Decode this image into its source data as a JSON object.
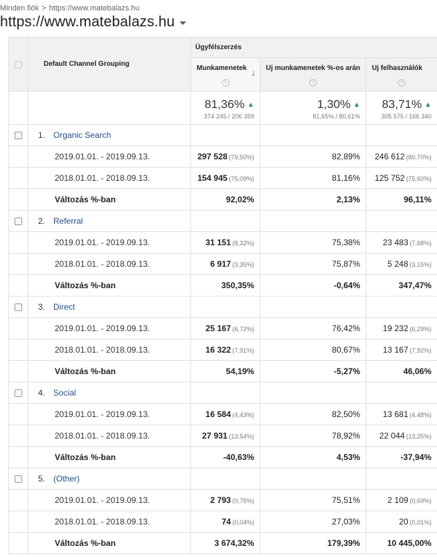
{
  "breadcrumb": {
    "root": "Minden fiók",
    "separator": ">",
    "current": "https://www.matebalazs.hu"
  },
  "view_title": "https://www.matebalazs.hu",
  "table": {
    "dimension_header": "Default Channel Grouping",
    "group_header": "Ügyfélszerzés",
    "columns": [
      "Munkamenetek",
      "Új munkamenetek %-os aránya",
      "Új felhasználók"
    ],
    "help_glyph": "?",
    "sort_glyph": "↓",
    "summary": [
      {
        "value": "81,36%",
        "sub": "374 245 / 206 359"
      },
      {
        "value": "1,30%",
        "sub": "81,65% / 80,61%"
      },
      {
        "value": "83,71%",
        "sub": "305 575 / 166 340"
      }
    ],
    "groups": [
      {
        "index": "1.",
        "name": "Organic Search",
        "rows": [
          {
            "label": "2019.01.01. - 2019.09.13.",
            "sessions": "297 528",
            "sessions_pct": "(79,50%)",
            "new_pct": "82,89%",
            "users": "246 612",
            "users_pct": "(80,70%)"
          },
          {
            "label": "2018.01.01. - 2018.09.13.",
            "sessions": "154 945",
            "sessions_pct": "(75,09%)",
            "new_pct": "81,16%",
            "users": "125 752",
            "users_pct": "(75,60%)"
          }
        ],
        "change": {
          "label": "Változás %-ban",
          "sessions": "92,02%",
          "new_pct": "2,13%",
          "users": "96,11%"
        }
      },
      {
        "index": "2.",
        "name": "Referral",
        "rows": [
          {
            "label": "2019.01.01. - 2019.09.13.",
            "sessions": "31 151",
            "sessions_pct": "(8,32%)",
            "new_pct": "75,38%",
            "users": "23 483",
            "users_pct": "(7,68%)"
          },
          {
            "label": "2018.01.01. - 2018.09.13.",
            "sessions": "6 917",
            "sessions_pct": "(3,35%)",
            "new_pct": "75,87%",
            "users": "5 248",
            "users_pct": "(3,15%)"
          }
        ],
        "change": {
          "label": "Változás %-ban",
          "sessions": "350,35%",
          "new_pct": "-0,64%",
          "users": "347,47%"
        }
      },
      {
        "index": "3.",
        "name": "Direct",
        "rows": [
          {
            "label": "2019.01.01. - 2019.09.13.",
            "sessions": "25 167",
            "sessions_pct": "(6,72%)",
            "new_pct": "76,42%",
            "users": "19 232",
            "users_pct": "(6,29%)"
          },
          {
            "label": "2018.01.01. - 2018.09.13.",
            "sessions": "16 322",
            "sessions_pct": "(7,91%)",
            "new_pct": "80,67%",
            "users": "13 167",
            "users_pct": "(7,92%)"
          }
        ],
        "change": {
          "label": "Változás %-ban",
          "sessions": "54,19%",
          "new_pct": "-5,27%",
          "users": "46,06%"
        }
      },
      {
        "index": "4.",
        "name": "Social",
        "rows": [
          {
            "label": "2019.01.01. - 2019.09.13.",
            "sessions": "16 584",
            "sessions_pct": "(4,43%)",
            "new_pct": "82,50%",
            "users": "13 681",
            "users_pct": "(4,48%)"
          },
          {
            "label": "2018.01.01. - 2018.09.13.",
            "sessions": "27 931",
            "sessions_pct": "(13,54%)",
            "new_pct": "78,92%",
            "users": "22 044",
            "users_pct": "(13,25%)"
          }
        ],
        "change": {
          "label": "Változás %-ban",
          "sessions": "-40,63%",
          "new_pct": "4,53%",
          "users": "-37,94%"
        }
      },
      {
        "index": "5.",
        "name": "(Other)",
        "rows": [
          {
            "label": "2019.01.01. - 2019.09.13.",
            "sessions": "2 793",
            "sessions_pct": "(0,75%)",
            "new_pct": "75,51%",
            "users": "2 109",
            "users_pct": "(0,69%)"
          },
          {
            "label": "2018.01.01. - 2018.09.13.",
            "sessions": "74",
            "sessions_pct": "(0,04%)",
            "new_pct": "27,03%",
            "users": "20",
            "users_pct": "(0,01%)"
          }
        ],
        "change": {
          "label": "Változás %-ban",
          "sessions": "3 674,32%",
          "new_pct": "179,39%",
          "users": "10 445,00%"
        }
      }
    ]
  },
  "colors": {
    "up_arrow": "#1a9c4c",
    "link": "#1f4e8a",
    "header_bg": "#f1f1f1",
    "border": "#e0e0e0"
  }
}
